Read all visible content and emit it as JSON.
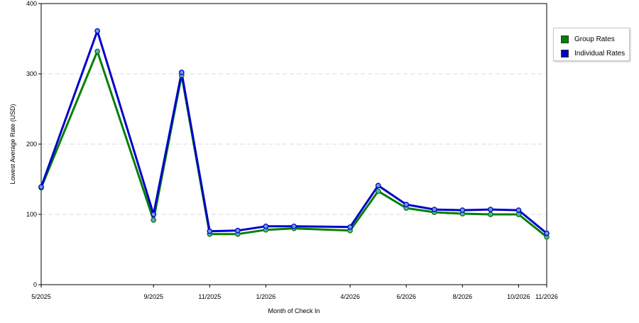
{
  "chart_data": {
    "type": "line",
    "xlabel": "Month of Check In",
    "ylabel": "Lowest Average Rate (USD)",
    "ylim": [
      0,
      400
    ],
    "yticks": [
      "0",
      "100",
      "200",
      "300",
      "400"
    ],
    "xticks": [
      "5/2025",
      "9/2025",
      "11/2025",
      "1/2026",
      "4/2026",
      "6/2026",
      "8/2026",
      "10/2026",
      "11/2026"
    ],
    "x": [
      "5/2025",
      "7/2025",
      "9/2025",
      "10/2025",
      "11/2025",
      "12/2025",
      "1/2026",
      "2/2026",
      "4/2026",
      "5/2026",
      "6/2026",
      "7/2026",
      "8/2026",
      "9/2026",
      "10/2026",
      "11/2026"
    ],
    "grid": "horizontal dashed",
    "legend_position": "right",
    "series": [
      {
        "name": "Group Rates",
        "color": "#008000",
        "values": [
          138,
          332,
          92,
          298,
          72,
          72,
          78,
          80,
          77,
          133,
          109,
          103,
          101,
          100,
          100,
          68
        ]
      },
      {
        "name": "Individual Rates",
        "color": "#0000cc",
        "values": [
          139,
          361,
          100,
          302,
          76,
          77,
          83,
          83,
          82,
          141,
          114,
          107,
          106,
          107,
          106,
          73
        ]
      }
    ]
  }
}
